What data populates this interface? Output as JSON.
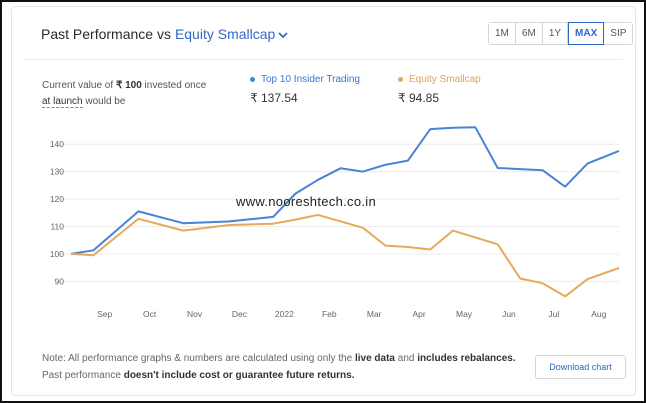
{
  "header": {
    "title_prefix": "Past Performance vs",
    "benchmark_selected": "Equity Smallcap",
    "chevron_icon": "chevron-down-icon"
  },
  "range_buttons": [
    {
      "label": "1M",
      "active": false
    },
    {
      "label": "6M",
      "active": false
    },
    {
      "label": "1Y",
      "active": false
    },
    {
      "label": "MAX",
      "active": true
    },
    {
      "label": "SIP",
      "active": false
    }
  ],
  "current_value": {
    "line1": "Current value of",
    "amount": "₹ 100",
    "line1_suffix": "invested once",
    "launch_text": "at launch",
    "line2_suffix": "would be"
  },
  "legend": [
    {
      "name": "Top 10 Insider Trading",
      "value": "₹ 137.54",
      "color": "#4a82d8"
    },
    {
      "name": "Equity Smallcap",
      "value": "₹ 94.85",
      "color": "#e8a85a"
    }
  ],
  "watermark": "www.nooreshtech.co.in",
  "note": {
    "part1": "Note: All performance graphs & numbers are calculated using only the",
    "bold1": "live data",
    "part2": "and",
    "bold2": "includes rebalances.",
    "part3": "Past performance",
    "bold3": "doesn't include cost or guarantee future returns."
  },
  "download_button": "Download chart",
  "chart_data": {
    "type": "line",
    "x": [
      "Aug",
      "Sep",
      "Oct",
      "Nov",
      "Dec",
      "2022",
      "Feb",
      "Mar",
      "Apr",
      "May",
      "Jun",
      "Jul",
      "Aug"
    ],
    "x_tick_labels": [
      "Sep",
      "Oct",
      "Nov",
      "Dec",
      "2022",
      "Feb",
      "Mar",
      "Apr",
      "May",
      "Jun",
      "Jul",
      "Aug"
    ],
    "y_ticks": [
      90,
      100,
      110,
      120,
      130,
      140
    ],
    "ylim": [
      85,
      147
    ],
    "grid": true,
    "series": [
      {
        "name": "Top 10 Insider Trading",
        "color": "#4a82d8",
        "points": [
          [
            0,
            100
          ],
          [
            0.5,
            101.3
          ],
          [
            1.5,
            115.5
          ],
          [
            2.5,
            111.2
          ],
          [
            3.5,
            111.8
          ],
          [
            4.5,
            113.5
          ],
          [
            5,
            122
          ],
          [
            5.5,
            127
          ],
          [
            6,
            131.2
          ],
          [
            6.5,
            130
          ],
          [
            7,
            132.5
          ],
          [
            7.5,
            134
          ],
          [
            8,
            145.5
          ],
          [
            8.5,
            146
          ],
          [
            9,
            146.2
          ],
          [
            9.5,
            131.3
          ],
          [
            10.5,
            130.5
          ],
          [
            11,
            124.5
          ],
          [
            11.5,
            133
          ],
          [
            12.2,
            137.54
          ]
        ]
      },
      {
        "name": "Equity Smallcap",
        "color": "#e8a85a",
        "points": [
          [
            0,
            100
          ],
          [
            0.5,
            99.5
          ],
          [
            1.5,
            112.8
          ],
          [
            2.5,
            108.5
          ],
          [
            3.5,
            110.5
          ],
          [
            4.5,
            111
          ],
          [
            5,
            112.5
          ],
          [
            5.5,
            114.2
          ],
          [
            6.5,
            109.5
          ],
          [
            7,
            103
          ],
          [
            7.5,
            102.5
          ],
          [
            8,
            101.6
          ],
          [
            8.5,
            108.5
          ],
          [
            9.5,
            103.5
          ],
          [
            10,
            91
          ],
          [
            10.5,
            89.3
          ],
          [
            11,
            84.5
          ],
          [
            11.5,
            90.8
          ],
          [
            12.2,
            94.85
          ]
        ]
      }
    ]
  }
}
